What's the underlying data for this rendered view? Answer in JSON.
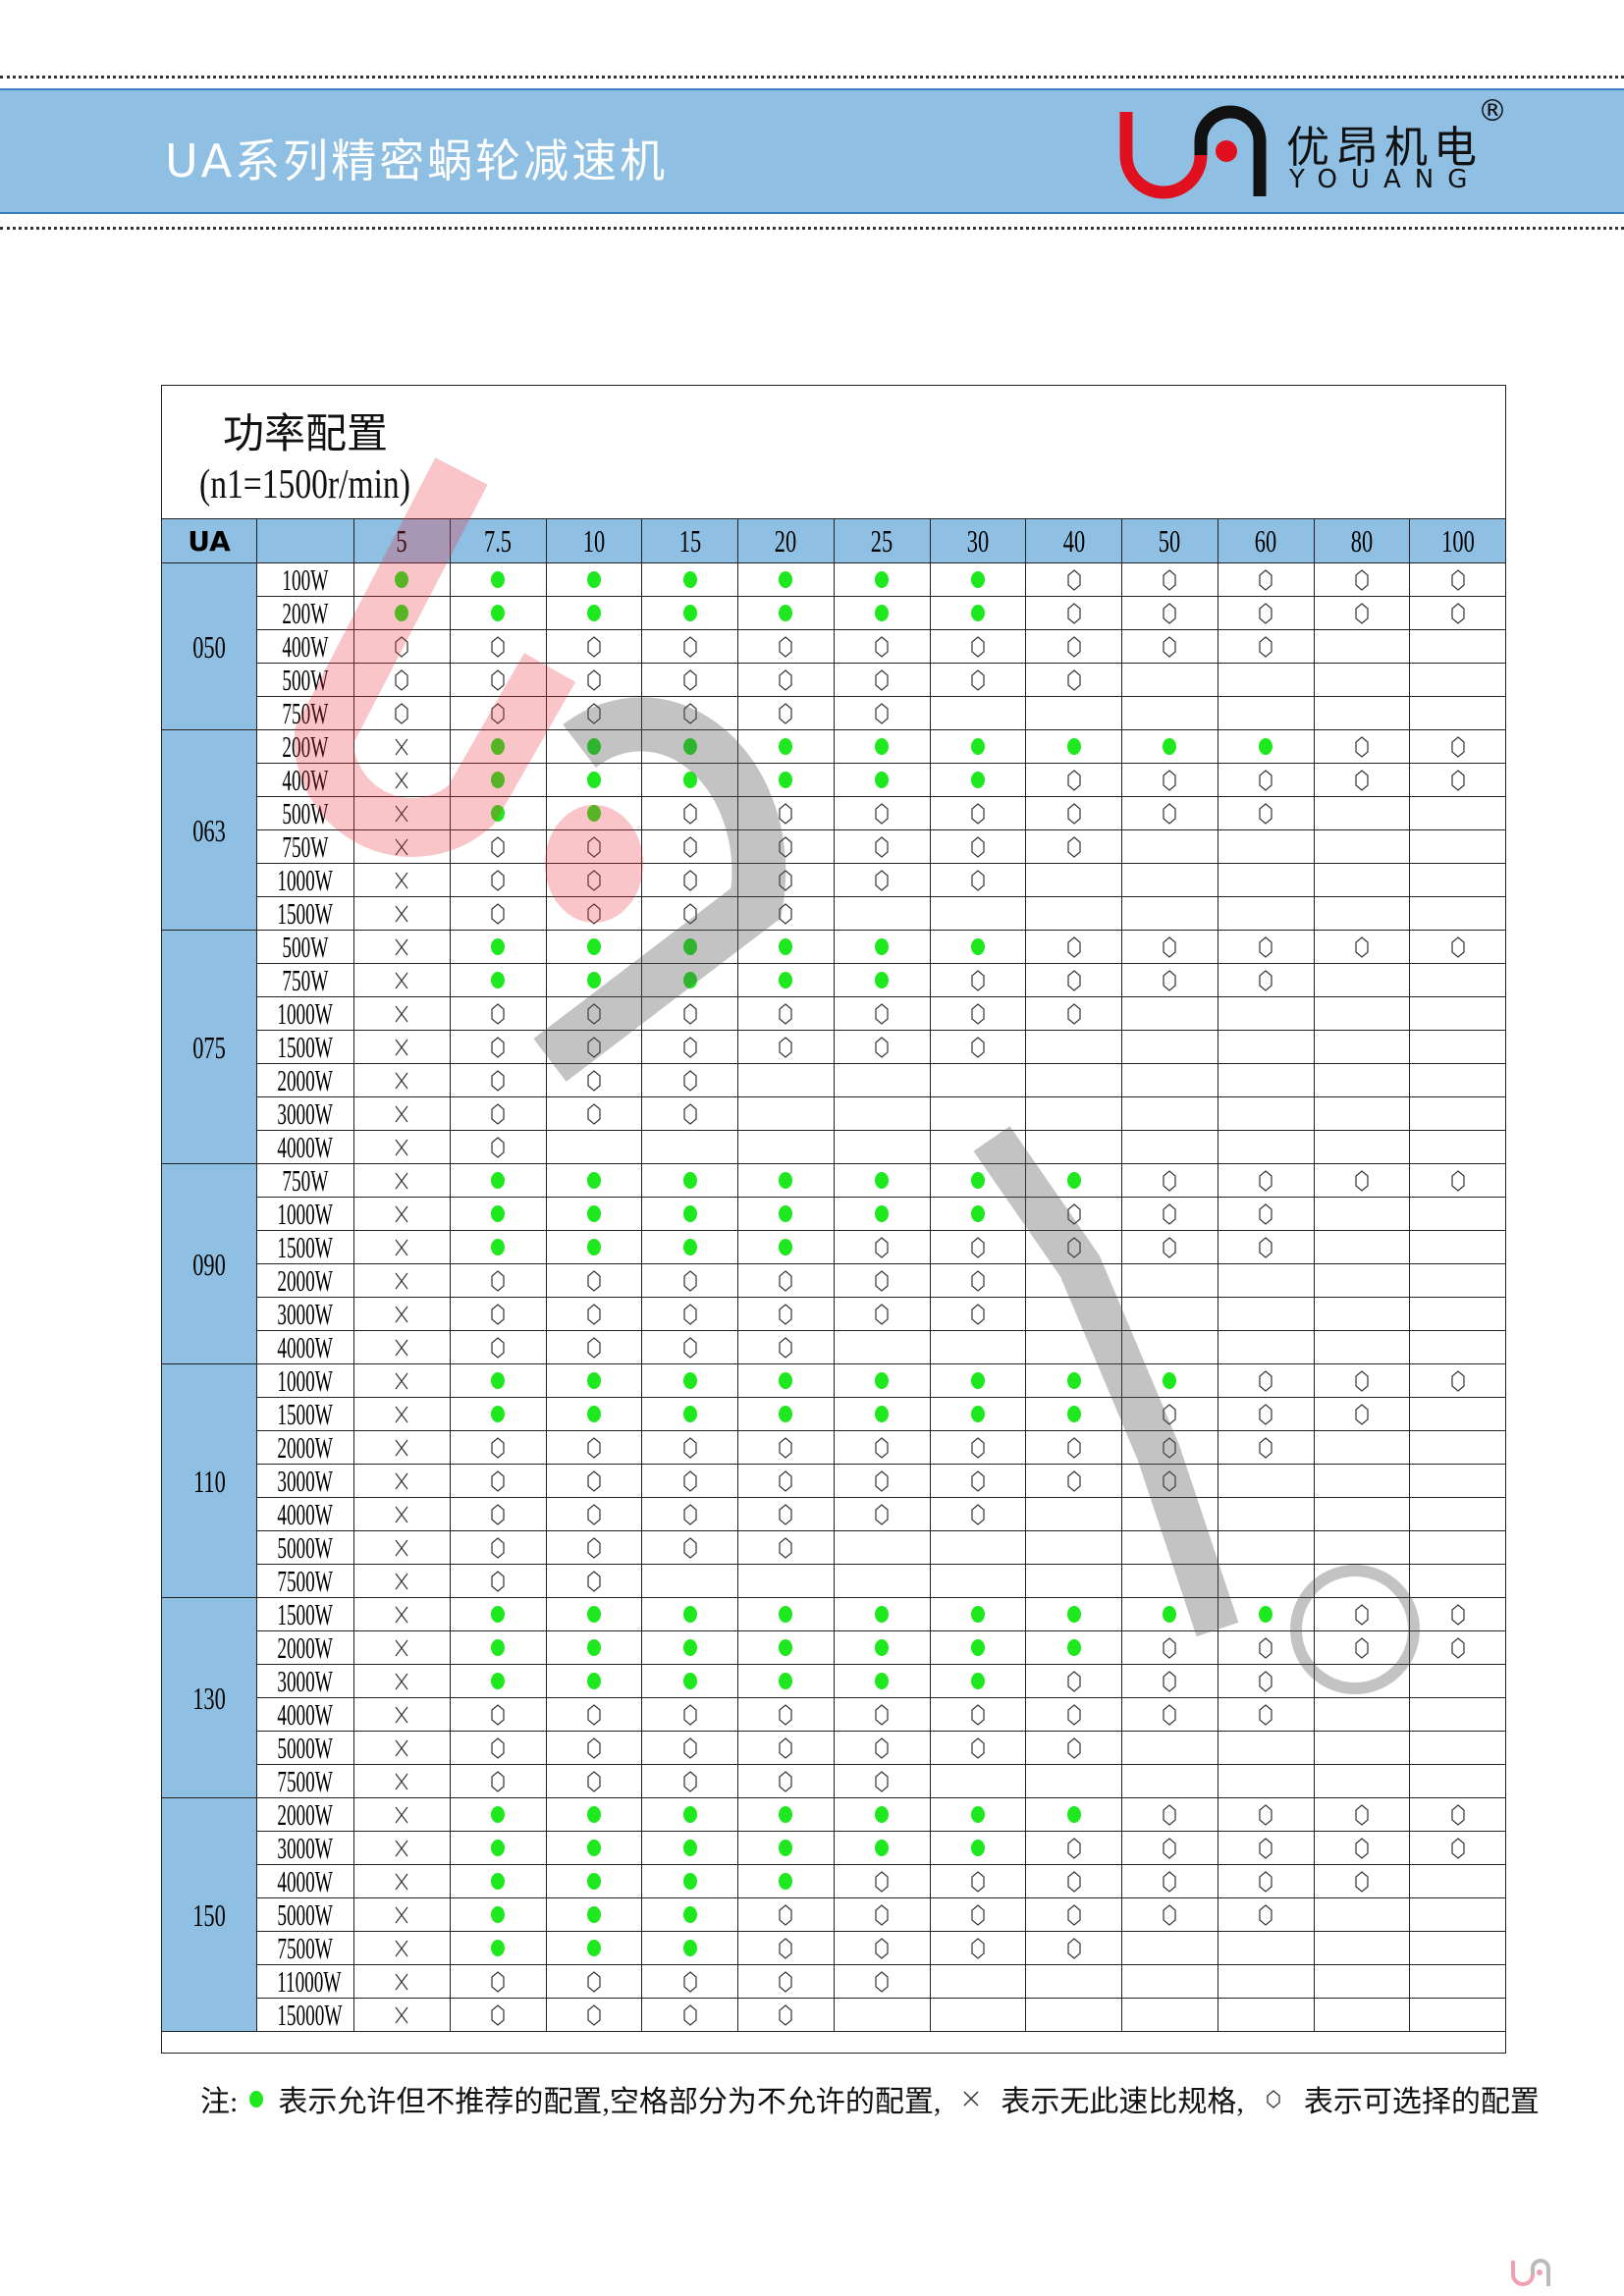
{
  "header": {
    "title": "UA系列精密蜗轮减速机",
    "logo": {
      "brand_cn": "优昂机电",
      "brand_en": "YOUANG",
      "registered": "®"
    }
  },
  "table": {
    "title": "功率配置",
    "subtitle": "(n1=1500r/min)",
    "corner_label": "UA",
    "ratios": [
      "5",
      "7.5",
      "10",
      "15",
      "20",
      "25",
      "30",
      "40",
      "50",
      "60",
      "80",
      "100"
    ],
    "groups": [
      {
        "model": "050",
        "rows": [
          {
            "power": "100W",
            "cells": "gggggggooooo"
          },
          {
            "power": "200W",
            "cells": "gggggggooooo"
          },
          {
            "power": "400W",
            "cells": "oooooooooo--"
          },
          {
            "power": "500W",
            "cells": "oooooooo----"
          },
          {
            "power": "750W",
            "cells": "oooooo------"
          }
        ]
      },
      {
        "model": "063",
        "rows": [
          {
            "power": "200W",
            "cells": "xgggggggggoo"
          },
          {
            "power": "400W",
            "cells": "xggggggooooo"
          },
          {
            "power": "500W",
            "cells": "xggooooooo--"
          },
          {
            "power": "750W",
            "cells": "xooooooo----"
          },
          {
            "power": "1000W",
            "cells": "xoooooo-----"
          },
          {
            "power": "1500W",
            "cells": "xoooo-------"
          }
        ]
      },
      {
        "model": "075",
        "rows": [
          {
            "power": "500W",
            "cells": "xggggggooooo"
          },
          {
            "power": "750W",
            "cells": "xgggggoooo--"
          },
          {
            "power": "1000W",
            "cells": "xooooooo----"
          },
          {
            "power": "1500W",
            "cells": "xoooooo-----"
          },
          {
            "power": "2000W",
            "cells": "xooo--------"
          },
          {
            "power": "3000W",
            "cells": "xooo--------"
          },
          {
            "power": "4000W",
            "cells": "xo----------"
          }
        ]
      },
      {
        "model": "090",
        "rows": [
          {
            "power": "750W",
            "cells": "xgggggggoooo"
          },
          {
            "power": "1000W",
            "cells": "xggggggooo--"
          },
          {
            "power": "1500W",
            "cells": "xggggooooo--"
          },
          {
            "power": "2000W",
            "cells": "xoooooo-----"
          },
          {
            "power": "3000W",
            "cells": "xoooooo-----"
          },
          {
            "power": "4000W",
            "cells": "xoooo-------"
          }
        ]
      },
      {
        "model": "110",
        "rows": [
          {
            "power": "1000W",
            "cells": "xggggggggooo"
          },
          {
            "power": "1500W",
            "cells": "xgggggggooo-"
          },
          {
            "power": "2000W",
            "cells": "xooooooooo--"
          },
          {
            "power": "3000W",
            "cells": "xoooooooo---"
          },
          {
            "power": "4000W",
            "cells": "xoooooo-----"
          },
          {
            "power": "5000W",
            "cells": "xoooo-------"
          },
          {
            "power": "7500W",
            "cells": "xoo---------"
          }
        ]
      },
      {
        "model": "130",
        "rows": [
          {
            "power": "1500W",
            "cells": "xgggggggggoo"
          },
          {
            "power": "2000W",
            "cells": "xgggggggoooo"
          },
          {
            "power": "3000W",
            "cells": "xggggggooo--"
          },
          {
            "power": "4000W",
            "cells": "xooooooooo--"
          },
          {
            "power": "5000W",
            "cells": "xooooooo----"
          },
          {
            "power": "7500W",
            "cells": "xooooo------"
          }
        ]
      },
      {
        "model": "150",
        "rows": [
          {
            "power": "2000W",
            "cells": "xgggggggoooo"
          },
          {
            "power": "3000W",
            "cells": "xggggggooooo"
          },
          {
            "power": "4000W",
            "cells": "xggggoooooo-"
          },
          {
            "power": "5000W",
            "cells": "xgggoooooo--"
          },
          {
            "power": "7500W",
            "cells": "xgggoooo----"
          },
          {
            "power": "11000W",
            "cells": "xooooo------"
          },
          {
            "power": "15000W",
            "cells": "xoooo-------"
          }
        ]
      }
    ],
    "cell_codes": {
      "g": "green-dot",
      "o": "hexagon",
      "x": "cross",
      "-": "blank"
    }
  },
  "note": {
    "prefix": "注:",
    "dot_text": "表示允许但不推荐的配置,空格部分为不允许的配置,",
    "cross_text": "表示无此速比规格,",
    "hex_text": "表示可选择的配置"
  },
  "colors": {
    "band": "#8fc0e3",
    "green_dot": "#1ee81e",
    "logo_red": "#e0101e"
  }
}
